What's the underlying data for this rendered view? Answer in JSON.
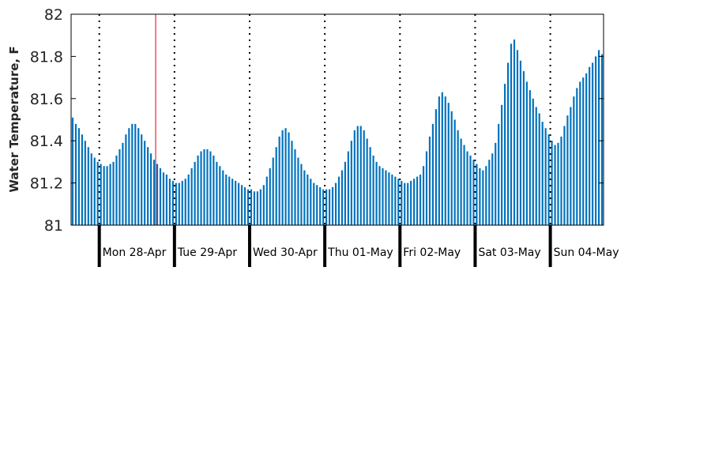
{
  "chart_data": {
    "type": "bar",
    "title": "",
    "xlabel": "",
    "ylabel": "Water Temperature, F",
    "ylim": [
      81,
      82
    ],
    "yticks": [
      "81",
      "81.2",
      "81.4",
      "81.6",
      "81.8",
      "82"
    ],
    "x_start": "27-Apr 15:00",
    "x_step_hours": 1,
    "day_boundaries": [
      "28-Apr 00:00",
      "29-Apr 00:00",
      "30-Apr 00:00",
      "01-May 00:00",
      "02-May 00:00",
      "03-May 00:00",
      "04-May 00:00"
    ],
    "day_labels": [
      "Mon 28-Apr",
      "Tue 29-Apr",
      "Wed 30-Apr",
      "Thu 01-May",
      "Fri 02-May",
      "Sat 03-May",
      "Sun 04-May"
    ],
    "current_time_marker": "28-Apr 18:00",
    "grid": "dotted vertical at day boundaries",
    "colors": {
      "bar": "#0072BD",
      "marker": "#e0001b",
      "axis": "#000000"
    },
    "series": [
      {
        "values": [
          81.51,
          81.48,
          81.46,
          81.43,
          81.4,
          81.37,
          81.34,
          81.32,
          81.3,
          81.29,
          81.28,
          81.28,
          81.29,
          81.3,
          81.33,
          81.36,
          81.39,
          81.43,
          81.46,
          81.48,
          81.48,
          81.46,
          81.43,
          81.4,
          81.37,
          81.34,
          81.31,
          81.29,
          81.27,
          81.25,
          81.24,
          81.22,
          81.21,
          81.2,
          81.2,
          81.21,
          81.22,
          81.24,
          81.27,
          81.3,
          81.33,
          81.35,
          81.36,
          81.36,
          81.35,
          81.33,
          81.3,
          81.28,
          81.26,
          81.24,
          81.23,
          81.22,
          81.21,
          81.2,
          81.19,
          81.18,
          81.17,
          81.17,
          81.16,
          81.16,
          81.17,
          81.19,
          81.23,
          81.27,
          81.32,
          81.37,
          81.42,
          81.45,
          81.46,
          81.44,
          81.4,
          81.36,
          81.32,
          81.29,
          81.26,
          81.24,
          81.22,
          81.2,
          81.19,
          81.18,
          81.17,
          81.17,
          81.17,
          81.18,
          81.2,
          81.23,
          81.26,
          81.3,
          81.35,
          81.4,
          81.45,
          81.47,
          81.47,
          81.45,
          81.41,
          81.37,
          81.33,
          81.3,
          81.28,
          81.27,
          81.26,
          81.25,
          81.24,
          81.23,
          81.22,
          81.21,
          81.2,
          81.2,
          81.21,
          81.22,
          81.23,
          81.24,
          81.28,
          81.35,
          81.42,
          81.48,
          81.55,
          81.61,
          81.63,
          81.61,
          81.58,
          81.54,
          81.5,
          81.45,
          81.41,
          81.38,
          81.35,
          81.33,
          81.31,
          81.29,
          81.27,
          81.26,
          81.28,
          81.31,
          81.34,
          81.39,
          81.48,
          81.57,
          81.67,
          81.77,
          81.86,
          81.88,
          81.83,
          81.78,
          81.73,
          81.68,
          81.64,
          81.6,
          81.56,
          81.53,
          81.49,
          81.46,
          81.43,
          81.4,
          81.38,
          81.39,
          81.42,
          81.47,
          81.52,
          81.56,
          81.61,
          81.65,
          81.68,
          81.7,
          81.72,
          81.75,
          81.77,
          81.8,
          81.83,
          81.81
        ]
      }
    ]
  }
}
